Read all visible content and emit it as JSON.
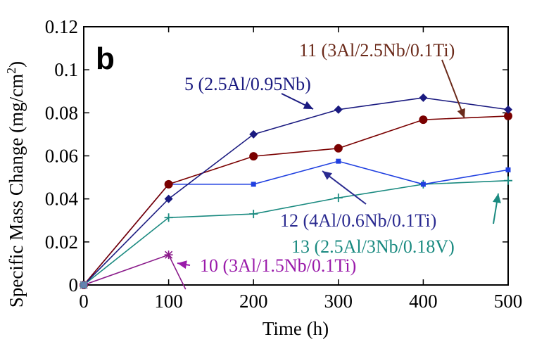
{
  "chart_data": {
    "type": "line",
    "panel_label": "b",
    "xlabel": "Time (h)",
    "ylabel": "Specific Mass Change (mg/cm",
    "ylabel_sup": "2",
    "ylabel_close": ")",
    "xlim": [
      0,
      500
    ],
    "ylim": [
      0,
      0.12
    ],
    "x_ticks": [
      "0",
      "100",
      "200",
      "300",
      "400",
      "500"
    ],
    "y_ticks": [
      "0",
      "0.02",
      "0.04",
      "0.06",
      "0.08",
      "0.1",
      "0.12"
    ],
    "grid": false,
    "series": [
      {
        "name": "5 (2.5Al/0.95Nb)",
        "color": "#1a1a80",
        "marker": "diamond",
        "x": [
          0,
          100,
          200,
          300,
          400,
          500
        ],
        "y": [
          0,
          0.04,
          0.07,
          0.0815,
          0.087,
          0.0815
        ]
      },
      {
        "name": "11 (3Al/2.5Nb/0.1Ti)",
        "color": "#7a0000",
        "marker": "circle",
        "x": [
          0,
          100,
          200,
          300,
          400,
          500
        ],
        "y": [
          0,
          0.0468,
          0.0598,
          0.0635,
          0.0768,
          0.0785
        ]
      },
      {
        "name": "12 (4Al/0.6Nb/0.1Ti)",
        "color": "#1f3fe0",
        "marker": "square",
        "x": [
          0,
          100,
          200,
          300,
          400,
          500
        ],
        "y": [
          0,
          0.0468,
          0.0468,
          0.0575,
          0.0468,
          0.0535
        ]
      },
      {
        "name": "13 (2.5Al/3Nb/0.18V)",
        "color": "#1a8a80",
        "marker": "plus",
        "x": [
          0,
          100,
          200,
          300,
          400,
          500
        ],
        "y": [
          0,
          0.0313,
          0.033,
          0.0405,
          0.0468,
          0.0485
        ]
      },
      {
        "name": "10 (3Al/1.5Nb/0.1Ti)",
        "color": "#8a1a8a",
        "marker": "star",
        "x": [
          0,
          100,
          120
        ],
        "y": [
          0,
          0.014,
          -0.002
        ]
      }
    ],
    "annotations": [
      {
        "text": "11 (3Al/2.5Nb/0.1Ti)",
        "color": "#6b2a1a",
        "series": 1
      },
      {
        "text": "5 (2.5Al/0.95Nb)",
        "color": "#1a1a80",
        "series": 0
      },
      {
        "text": "12 (4Al/0.6Nb/0.1Ti)",
        "color": "#2a2a90",
        "series": 2
      },
      {
        "text": "13 (2.5Al/3Nb/0.18V)",
        "color": "#1a8a80",
        "series": 3
      },
      {
        "text": "10 (3Al/1.5Nb/0.1Ti)",
        "color": "#9a1aaa",
        "series": 4
      }
    ]
  }
}
